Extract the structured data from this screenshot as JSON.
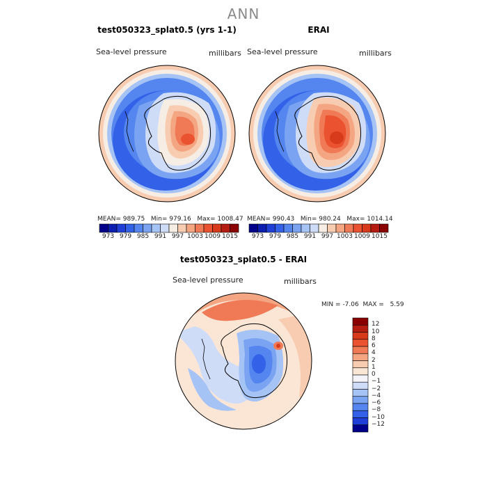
{
  "title": "ANN",
  "panels": [
    {
      "title": "test050323_splat0.5 (yrs 1-1)",
      "variable": "Sea-level pressure",
      "units": "millibars",
      "mean_label": "MEAN=",
      "mean": "989.75",
      "min_label": "Min=",
      "min": "979.16",
      "max_label": "Max=",
      "max": "1008.47"
    },
    {
      "title": "ERAI",
      "variable": "Sea-level pressure",
      "units": "millibars",
      "mean_label": "MEAN=",
      "mean": "990.43",
      "min_label": "Min=",
      "min": "980.24",
      "max_label": "Max=",
      "max": "1014.14"
    }
  ],
  "colorbar_abs": {
    "ticks": [
      "973",
      "979",
      "985",
      "991",
      "997",
      "1003",
      "1009",
      "1015"
    ],
    "colors": [
      "#00008b",
      "#0a1fb0",
      "#1f3fd6",
      "#3361e8",
      "#5585ee",
      "#7aa4f2",
      "#a6c3f6",
      "#cfdcf8",
      "#f6ede4",
      "#f8ccb0",
      "#f4a582",
      "#f07a55",
      "#ea5230",
      "#d83a1c",
      "#b51d10",
      "#8b0000"
    ]
  },
  "diff": {
    "title": "test050323_splat0.5 - ERAI",
    "variable": "Sea-level pressure",
    "units": "millibars",
    "min_label": "MIN =",
    "min": "-7.06",
    "max_label": "MAX =",
    "max": "5.59",
    "colorbar": {
      "ticks": [
        "12",
        "10",
        "8",
        "6",
        "4",
        "2",
        "1",
        "0",
        "−1",
        "−2",
        "−4",
        "−6",
        "−8",
        "−10",
        "−12"
      ],
      "colors": [
        "#8b0000",
        "#b51d10",
        "#d83a1c",
        "#ea5230",
        "#f07a55",
        "#f4a582",
        "#f8ccb0",
        "#fbe6d6",
        "#f4f4f8",
        "#cfdcf8",
        "#a6c3f6",
        "#7aa4f2",
        "#5585ee",
        "#3361e8",
        "#1f3fd6",
        "#00008b"
      ]
    }
  }
}
